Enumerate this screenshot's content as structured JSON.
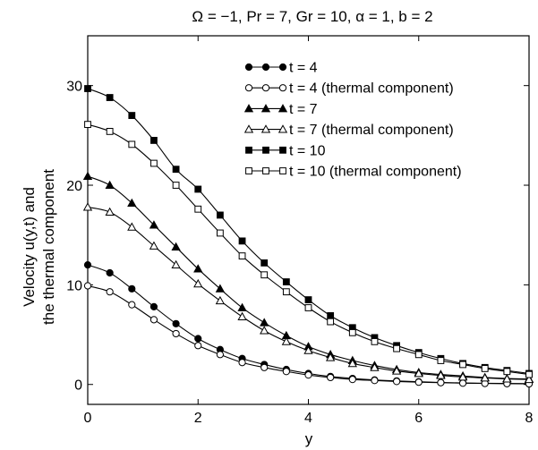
{
  "chart_data": {
    "type": "line",
    "title": "Ω = −1, Pr = 7, Gr = 10, α = 1, b = 2",
    "xlabel": "y",
    "ylabel_line1": "Velocity u(y,t) and",
    "ylabel_line2": "the thermal component",
    "xlim": [
      0,
      8
    ],
    "ylim": [
      -2,
      35
    ],
    "xticks": [
      0,
      2,
      4,
      6,
      8
    ],
    "xtick_labels": [
      "0",
      "2",
      "4",
      "6",
      "8"
    ],
    "yticks": [
      0,
      10,
      20,
      30
    ],
    "ytick_labels": [
      "0",
      "10",
      "20",
      "30"
    ],
    "grid": false,
    "legend_position": "top-right",
    "x": [
      0,
      0.4,
      0.8,
      1.2,
      1.6,
      2.0,
      2.4,
      2.8,
      3.2,
      3.6,
      4.0,
      4.4,
      4.8,
      5.2,
      5.6,
      6.0,
      6.4,
      6.8,
      7.2,
      7.6,
      8.0
    ],
    "series": [
      {
        "name": "t = 4",
        "marker": "filled-circle",
        "values": [
          12.0,
          11.2,
          9.6,
          7.8,
          6.1,
          4.6,
          3.5,
          2.6,
          2.0,
          1.5,
          1.1,
          0.8,
          0.6,
          0.45,
          0.35,
          0.27,
          0.2,
          0.15,
          0.12,
          0.1,
          0.08
        ]
      },
      {
        "name": "t = 4 (thermal component)",
        "marker": "open-circle",
        "values": [
          9.9,
          9.3,
          8.0,
          6.5,
          5.1,
          3.9,
          3.0,
          2.2,
          1.7,
          1.3,
          0.95,
          0.7,
          0.5,
          0.4,
          0.3,
          0.23,
          0.18,
          0.13,
          0.1,
          0.08,
          0.06
        ]
      },
      {
        "name": "t = 7",
        "marker": "filled-triangle",
        "values": [
          20.9,
          20.0,
          18.2,
          16.0,
          13.8,
          11.6,
          9.6,
          7.7,
          6.2,
          4.9,
          3.8,
          3.0,
          2.4,
          1.9,
          1.5,
          1.2,
          1.0,
          0.85,
          0.7,
          0.6,
          0.55
        ]
      },
      {
        "name": "t = 7 (thermal component)",
        "marker": "open-triangle",
        "values": [
          17.8,
          17.3,
          15.8,
          13.9,
          12.0,
          10.1,
          8.4,
          6.8,
          5.4,
          4.3,
          3.4,
          2.7,
          2.1,
          1.7,
          1.35,
          1.1,
          0.9,
          0.75,
          0.65,
          0.55,
          0.5
        ]
      },
      {
        "name": "t = 10",
        "marker": "filled-square",
        "values": [
          29.7,
          28.8,
          27.0,
          24.5,
          21.6,
          19.6,
          17.0,
          14.4,
          12.2,
          10.3,
          8.5,
          6.9,
          5.7,
          4.7,
          3.9,
          3.2,
          2.6,
          2.1,
          1.7,
          1.4,
          1.1
        ]
      },
      {
        "name": "t = 10 (thermal component)",
        "marker": "open-square",
        "values": [
          26.1,
          25.4,
          24.1,
          22.2,
          20.0,
          17.6,
          15.2,
          12.9,
          11.0,
          9.3,
          7.7,
          6.3,
          5.2,
          4.3,
          3.6,
          3.0,
          2.4,
          2.0,
          1.6,
          1.3,
          1.0
        ]
      }
    ]
  }
}
